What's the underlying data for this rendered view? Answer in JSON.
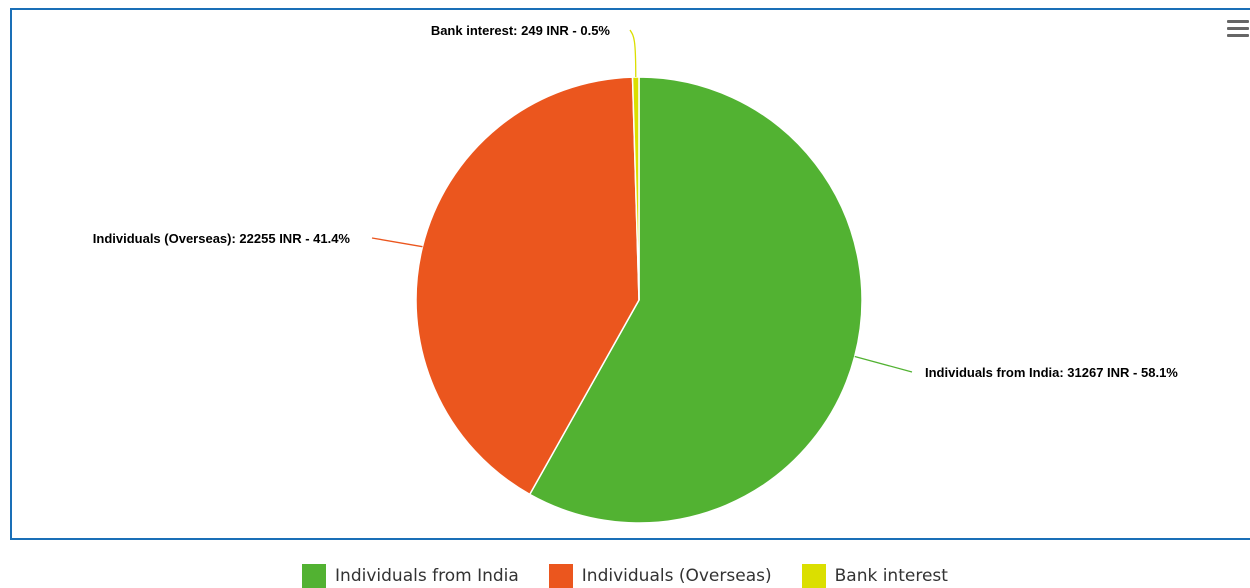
{
  "chart_data": {
    "type": "pie",
    "title": "",
    "legend_position": "bottom-center",
    "slices": [
      {
        "name": "Individuals from India",
        "value": 31267,
        "percent": 58.1,
        "color": "#52b232",
        "label": "Individuals from India: 31267 INR - 58.1%"
      },
      {
        "name": "Individuals (Overseas)",
        "value": 22255,
        "percent": 41.4,
        "color": "#eb561e",
        "label": "Individuals (Overseas): 22255 INR - 41.4%"
      },
      {
        "name": "Bank interest",
        "value": 249,
        "percent": 0.5,
        "color": "#dbdf00",
        "label": "Bank interest: 249 INR - 0.5%"
      }
    ]
  },
  "menu": {
    "icon": "hamburger-menu-icon"
  }
}
